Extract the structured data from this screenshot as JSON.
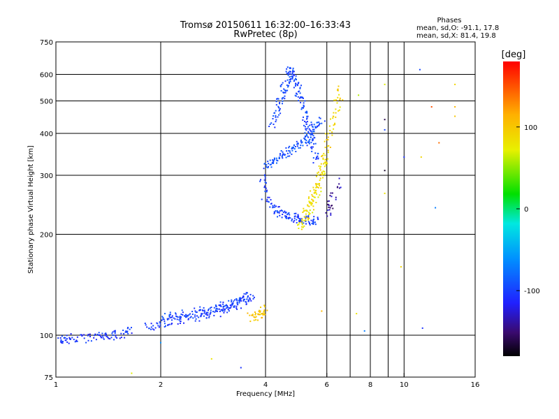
{
  "header": {
    "title_line1": "Tromsø 20150611 16:32:00–16:33:43",
    "title_line2": "RwPretec (8p)"
  },
  "phases_box": {
    "heading": "Phases",
    "line_o": "mean, sd,O: -91.1, 17.8",
    "line_x": "mean, sd,X:  81.4, 19.8"
  },
  "colorbar": {
    "label": "[deg]",
    "range": [
      -180,
      180
    ],
    "tick_labels": [
      "100",
      "0",
      "-100"
    ],
    "tick_values": [
      100,
      0,
      -100
    ]
  },
  "chart_data": {
    "type": "scatter",
    "xlabel": "Frequency [MHz]",
    "ylabel": "Stationary phase Virtual Height [km]",
    "x_scale": "log",
    "y_scale": "log",
    "xlim": [
      1,
      16
    ],
    "ylim": [
      75,
      750
    ],
    "x_ticks": [
      1,
      2,
      4,
      6,
      8,
      10,
      16
    ],
    "x_tick_labels": [
      "1",
      "2",
      "4",
      "6",
      "8",
      "10",
      "16"
    ],
    "y_ticks": [
      75,
      100,
      200,
      300,
      400,
      500,
      600,
      750
    ],
    "y_tick_labels": [
      "75",
      "100",
      "200",
      "300",
      "400",
      "500",
      "600",
      "750"
    ],
    "grid": true,
    "color_encodes": "phase [deg]",
    "traces": [
      {
        "x": [
          1.0,
          1.06,
          1.12,
          1.25,
          1.35,
          1.45,
          1.55,
          1.65
        ],
        "y": [
          97,
          97,
          98,
          98,
          99,
          100,
          101,
          103
        ],
        "phase": -110
      },
      {
        "x": [
          1.8,
          1.95,
          2.1,
          2.3,
          2.5,
          2.7,
          2.9,
          3.1,
          3.3,
          3.5,
          3.7
        ],
        "y": [
          106,
          108,
          110,
          111,
          113,
          115,
          117,
          120,
          123,
          127,
          132
        ],
        "phase": -105
      },
      {
        "x": [
          2.0,
          2.2,
          2.4,
          2.6,
          2.8,
          3.0,
          3.2,
          3.4,
          3.6
        ],
        "y": [
          112,
          114,
          116,
          118,
          120,
          122,
          125,
          128,
          131
        ],
        "phase": -100
      },
      {
        "x": [
          3.6,
          3.8,
          3.9,
          4.0
        ],
        "y": [
          113,
          114,
          117,
          120
        ],
        "phase": 100
      },
      {
        "x": [
          3.9,
          4.0,
          4.2,
          4.4,
          4.6,
          4.8,
          5.0,
          5.2,
          5.4,
          5.6
        ],
        "y": [
          300,
          260,
          240,
          232,
          228,
          225,
          223,
          221,
          220,
          220
        ],
        "phase": -105
      },
      {
        "x": [
          4.2,
          4.3,
          4.4,
          4.5,
          4.6,
          4.7,
          4.8,
          4.9,
          5.0,
          5.1,
          5.2,
          5.3,
          5.4,
          5.5,
          5.6
        ],
        "y": [
          420,
          460,
          500,
          540,
          580,
          620,
          600,
          560,
          520,
          490,
          450,
          420,
          390,
          360,
          330
        ],
        "phase": -100
      },
      {
        "x": [
          4.0,
          4.2,
          4.4,
          4.6,
          4.8,
          5.0,
          5.2,
          5.4,
          5.6,
          5.8
        ],
        "y": [
          320,
          330,
          340,
          350,
          360,
          370,
          380,
          400,
          420,
          440
        ],
        "phase": -95
      },
      {
        "x": [
          5.2,
          5.4,
          5.6,
          5.8,
          6.0,
          6.2,
          6.4,
          6.6
        ],
        "y": [
          230,
          250,
          280,
          320,
          360,
          420,
          480,
          560
        ],
        "phase": 90
      },
      {
        "x": [
          5.0,
          5.2,
          5.4,
          5.6,
          5.8,
          6.0
        ],
        "y": [
          210,
          220,
          240,
          260,
          300,
          340
        ],
        "phase": 80
      },
      {
        "x": [
          6.0,
          6.2,
          6.5
        ],
        "y": [
          230,
          250,
          290
        ],
        "phase": -140
      }
    ],
    "sparse_points": [
      {
        "x": 7.4,
        "y": 520,
        "phase": 60
      },
      {
        "x": 8.8,
        "y": 560,
        "phase": 70
      },
      {
        "x": 8.8,
        "y": 440,
        "phase": -160
      },
      {
        "x": 8.8,
        "y": 410,
        "phase": -100
      },
      {
        "x": 8.8,
        "y": 310,
        "phase": -170
      },
      {
        "x": 8.8,
        "y": 265,
        "phase": 80
      },
      {
        "x": 10.0,
        "y": 340,
        "phase": -110
      },
      {
        "x": 11.1,
        "y": 620,
        "phase": -100
      },
      {
        "x": 11.2,
        "y": 340,
        "phase": 90
      },
      {
        "x": 12.0,
        "y": 480,
        "phase": 150
      },
      {
        "x": 12.6,
        "y": 375,
        "phase": 140
      },
      {
        "x": 14.0,
        "y": 560,
        "phase": 90
      },
      {
        "x": 14.0,
        "y": 480,
        "phase": 110
      },
      {
        "x": 14.0,
        "y": 450,
        "phase": 100
      },
      {
        "x": 12.3,
        "y": 240,
        "phase": -70
      },
      {
        "x": 11.3,
        "y": 105,
        "phase": -110
      },
      {
        "x": 9.8,
        "y": 160,
        "phase": 90
      },
      {
        "x": 7.7,
        "y": 103,
        "phase": -70
      },
      {
        "x": 7.3,
        "y": 116,
        "phase": 80
      },
      {
        "x": 5.8,
        "y": 118,
        "phase": 110
      },
      {
        "x": 3.4,
        "y": 80,
        "phase": -110
      },
      {
        "x": 2.8,
        "y": 85,
        "phase": 80
      },
      {
        "x": 1.65,
        "y": 77,
        "phase": 70
      },
      {
        "x": 2.0,
        "y": 95,
        "phase": -60
      }
    ]
  }
}
